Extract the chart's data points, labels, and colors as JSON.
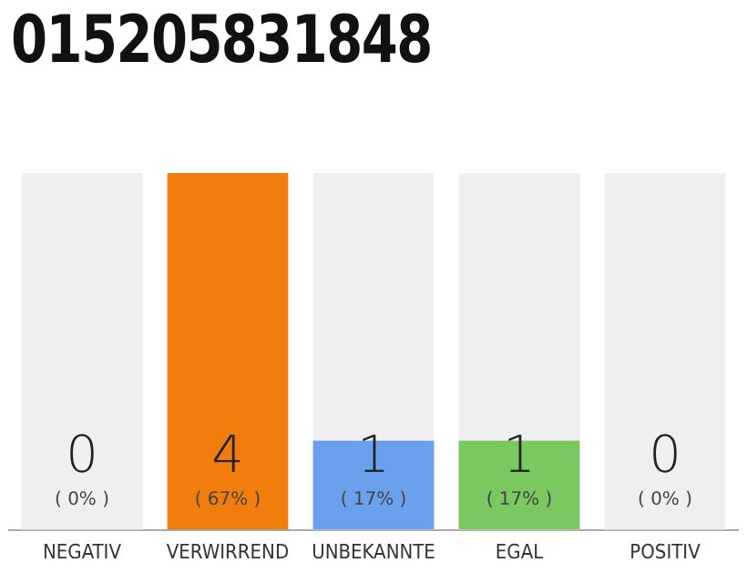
{
  "chart_data": {
    "type": "bar",
    "title": "015205831848",
    "categories": [
      "NEGATIV",
      "VERWIRREND",
      "UNBEKANNTE",
      "EGAL",
      "POSITIV"
    ],
    "values": [
      0,
      4,
      1,
      1,
      0
    ],
    "colors": [
      "#f07d0c",
      "#f07d0c",
      "#6aa0ec",
      "#7cc860",
      "#7cc860"
    ],
    "ylim": [
      0,
      4
    ],
    "bands": [
      {
        "axis": "x",
        "from": "NEGATIV",
        "to": "NEGATIV",
        "color": "#efefef"
      },
      {
        "axis": "x",
        "from": "UNBEKANNTE",
        "to": "UNBEKANNTE",
        "color": "#efefef"
      },
      {
        "axis": "x",
        "from": "EGAL",
        "to": "EGAL",
        "color": "#efefef"
      },
      {
        "axis": "x",
        "from": "POSITIV",
        "to": "POSITIV",
        "color": "#efefef"
      }
    ],
    "data_labels": true,
    "grid": false,
    "legend": false,
    "annotations": [
      {
        "text": "( 0% )",
        "x": "NEGATIV",
        "y": 0
      },
      {
        "text": "( 67% )",
        "x": "VERWIRREND",
        "y": 0
      },
      {
        "text": "( 17% )",
        "x": "UNBEKANNTE",
        "y": 0
      },
      {
        "text": "( 17% )",
        "x": "EGAL",
        "y": 0
      },
      {
        "text": "( 0% )",
        "x": "POSITIV",
        "y": 0
      }
    ]
  }
}
